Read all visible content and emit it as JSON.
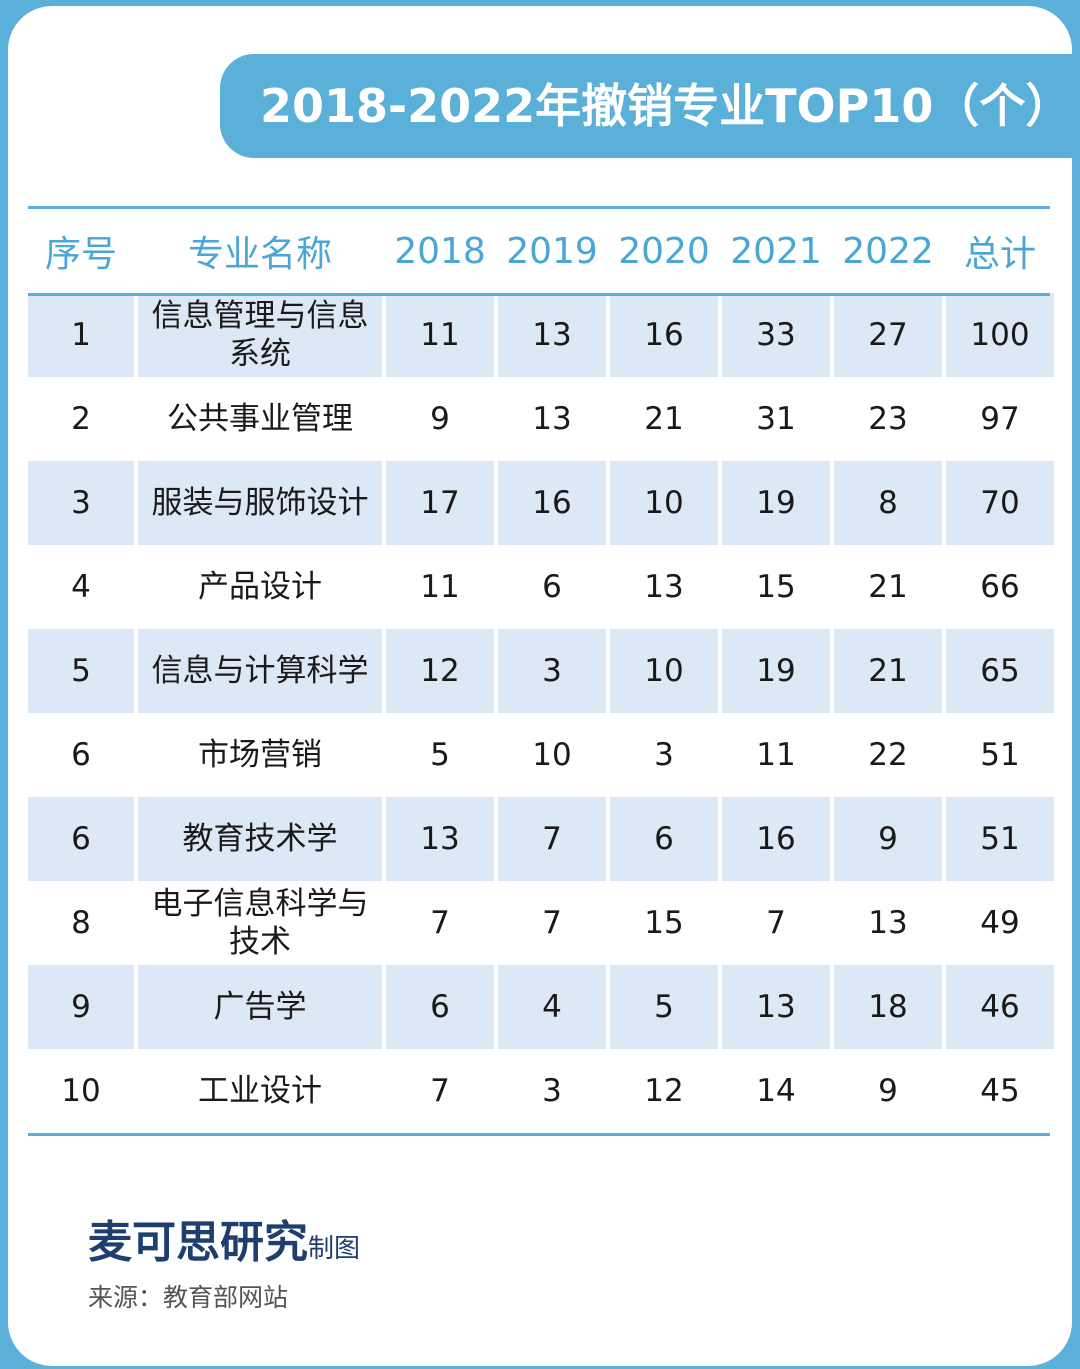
{
  "title": "2018-2022年撤销专业TOP10（个）",
  "headers": [
    "序号",
    "专业名称",
    "2018",
    "2019",
    "2020",
    "2021",
    "2022",
    "总计"
  ],
  "rows": [
    {
      "rank": "1",
      "name": "信息管理与信息系统",
      "values": [
        "11",
        "13",
        "16",
        "33",
        "27",
        "100"
      ]
    },
    {
      "rank": "2",
      "name": "公共事业管理",
      "values": [
        "9",
        "13",
        "21",
        "31",
        "23",
        "97"
      ]
    },
    {
      "rank": "3",
      "name": "服装与服饰设计",
      "values": [
        "17",
        "16",
        "10",
        "19",
        "8",
        "70"
      ]
    },
    {
      "rank": "4",
      "name": "产品设计",
      "values": [
        "11",
        "6",
        "13",
        "15",
        "21",
        "66"
      ]
    },
    {
      "rank": "5",
      "name": "信息与计算科学",
      "values": [
        "12",
        "3",
        "10",
        "19",
        "21",
        "65"
      ]
    },
    {
      "rank": "6",
      "name": "市场营销",
      "values": [
        "5",
        "10",
        "3",
        "11",
        "22",
        "51"
      ]
    },
    {
      "rank": "6",
      "name": "教育技术学",
      "values": [
        "13",
        "7",
        "6",
        "16",
        "9",
        "51"
      ]
    },
    {
      "rank": "8",
      "name": "电子信息科学与技术",
      "values": [
        "7",
        "7",
        "15",
        "7",
        "13",
        "49"
      ]
    },
    {
      "rank": "9",
      "name": "广告学",
      "values": [
        "6",
        "4",
        "5",
        "13",
        "18",
        "46"
      ]
    },
    {
      "rank": "10",
      "name": "工业设计",
      "values": [
        "7",
        "3",
        "12",
        "14",
        "9",
        "45"
      ]
    }
  ],
  "footer": {
    "brand": "麦可思研究",
    "brand_suffix": "制图",
    "source": "来源：教育部网站"
  },
  "colors": {
    "accent": "#5ab0d8",
    "header_text": "#4aa6d6",
    "row_shade": "#dce8f5",
    "brand": "#1e3f6e"
  },
  "chart_data": {
    "type": "table",
    "title": "2018-2022年撤销专业TOP10（个）",
    "columns": [
      "序号",
      "专业名称",
      "2018",
      "2019",
      "2020",
      "2021",
      "2022",
      "总计"
    ],
    "rows": [
      [
        "1",
        "信息管理与信息系统",
        11,
        13,
        16,
        33,
        27,
        100
      ],
      [
        "2",
        "公共事业管理",
        9,
        13,
        21,
        31,
        23,
        97
      ],
      [
        "3",
        "服装与服饰设计",
        17,
        16,
        10,
        19,
        8,
        70
      ],
      [
        "4",
        "产品设计",
        11,
        6,
        13,
        15,
        21,
        66
      ],
      [
        "5",
        "信息与计算科学",
        12,
        3,
        10,
        19,
        21,
        65
      ],
      [
        "6",
        "市场营销",
        5,
        10,
        3,
        11,
        22,
        51
      ],
      [
        "6",
        "教育技术学",
        13,
        7,
        6,
        16,
        9,
        51
      ],
      [
        "8",
        "电子信息科学与技术",
        7,
        7,
        15,
        7,
        13,
        49
      ],
      [
        "9",
        "广告学",
        6,
        4,
        5,
        13,
        18,
        46
      ],
      [
        "10",
        "工业设计",
        7,
        3,
        12,
        14,
        9,
        45
      ]
    ]
  }
}
